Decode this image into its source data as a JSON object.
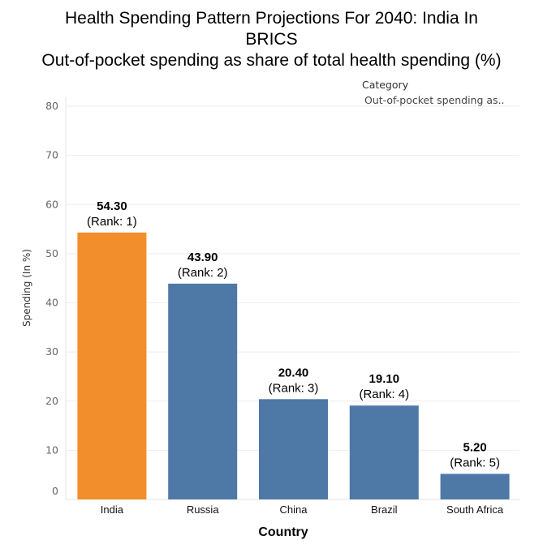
{
  "title": {
    "line1": "Health Spending Pattern Projections For 2040: India In",
    "line2": "BRICS",
    "line3": "Out-of-pocket spending as share of total health spending (%)"
  },
  "legend": {
    "title": "Category",
    "entry": "Out-of-pocket spending as.."
  },
  "colors": {
    "highlight": "#f28e2b",
    "default": "#4e79a7",
    "grid": "#eeeeee"
  },
  "chart_data": {
    "type": "bar",
    "title": "Health Spending Pattern Projections For 2040: India In BRICS — Out-of-pocket spending as share of total health spending (%)",
    "xlabel": "Country",
    "ylabel": "Spending (In %)",
    "ylim": [
      0,
      80
    ],
    "yticks": [
      0,
      10,
      20,
      30,
      40,
      50,
      60,
      70,
      80
    ],
    "categories": [
      "India",
      "Russia",
      "China",
      "Brazil",
      "South Africa"
    ],
    "values": [
      54.3,
      43.9,
      20.4,
      19.1,
      5.2
    ],
    "value_labels": [
      "54.30",
      "43.90",
      "20.40",
      "19.10",
      "5.20"
    ],
    "rank_labels": [
      "(Rank: 1)",
      "(Rank: 2)",
      "(Rank: 3)",
      "(Rank: 4)",
      "(Rank: 5)"
    ],
    "highlight": "India",
    "grid": true
  }
}
